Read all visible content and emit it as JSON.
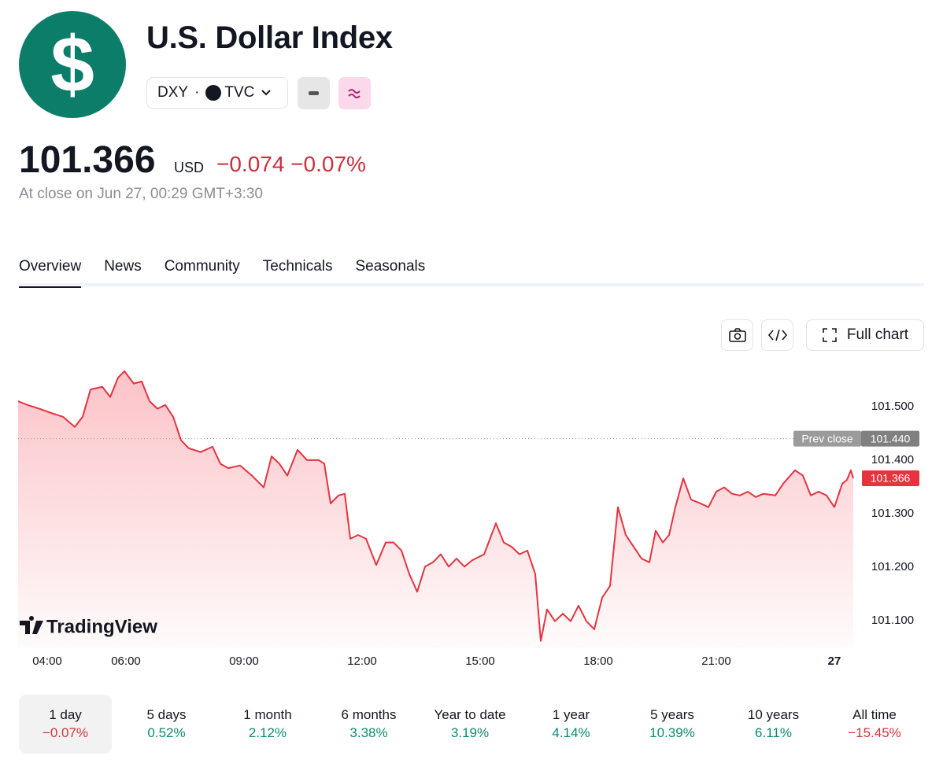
{
  "header": {
    "logo_symbol": "$",
    "title": "U.S. Dollar Index",
    "symbol": "DXY",
    "separator": "·",
    "exchange": "TVC"
  },
  "quote": {
    "price": "101.366",
    "currency": "USD",
    "change": "−0.074",
    "change_percent": "−0.07%",
    "status": "At close on Jun 27, 00:29 GMT+3:30"
  },
  "tabs": [
    "Overview",
    "News",
    "Community",
    "Technicals",
    "Seasonals"
  ],
  "active_tab": 0,
  "toolbar": {
    "full_chart": "Full chart"
  },
  "chart_data": {
    "type": "line",
    "x": [
      3.26,
      3.5,
      3.8,
      4.1,
      4.4,
      4.7,
      4.9,
      5.1,
      5.4,
      5.6,
      5.8,
      5.96,
      6.2,
      6.4,
      6.6,
      6.8,
      7.0,
      7.2,
      7.4,
      7.6,
      7.9,
      8.2,
      8.4,
      8.6,
      8.9,
      9.2,
      9.5,
      9.7,
      9.9,
      10.1,
      10.36,
      10.6,
      10.9,
      11.04,
      11.2,
      11.4,
      11.56,
      11.7,
      11.9,
      12.1,
      12.36,
      12.6,
      12.8,
      13.0,
      13.2,
      13.4,
      13.6,
      13.8,
      14.0,
      14.2,
      14.4,
      14.6,
      14.8,
      15.1,
      15.4,
      15.6,
      15.8,
      16.0,
      16.2,
      16.4,
      16.54,
      16.7,
      16.9,
      17.1,
      17.3,
      17.5,
      17.7,
      17.9,
      18.1,
      18.3,
      18.5,
      18.7,
      18.9,
      19.1,
      19.3,
      19.46,
      19.64,
      19.8,
      19.96,
      20.16,
      20.36,
      20.6,
      20.8,
      21.0,
      21.2,
      21.4,
      21.6,
      21.8,
      22.0,
      22.2,
      22.5,
      22.7,
      23.0,
      23.2,
      23.4,
      23.6,
      23.8,
      24.0,
      24.2,
      24.32,
      24.42,
      24.48
    ],
    "values": [
      101.51,
      101.503,
      101.496,
      101.488,
      101.481,
      101.462,
      101.481,
      101.532,
      101.537,
      101.518,
      101.554,
      101.566,
      101.543,
      101.547,
      101.51,
      101.496,
      101.503,
      101.481,
      101.437,
      101.422,
      101.415,
      101.425,
      101.393,
      101.385,
      101.39,
      101.371,
      101.349,
      101.407,
      101.393,
      101.371,
      101.419,
      101.4,
      101.4,
      101.393,
      101.319,
      101.334,
      101.337,
      101.253,
      101.26,
      101.253,
      101.204,
      101.246,
      101.246,
      101.231,
      101.187,
      101.154,
      101.201,
      101.209,
      101.224,
      101.201,
      101.216,
      101.201,
      101.213,
      101.224,
      101.282,
      101.246,
      101.238,
      101.224,
      101.231,
      101.187,
      101.062,
      101.121,
      101.099,
      101.113,
      101.099,
      101.128,
      101.099,
      101.084,
      101.143,
      101.165,
      101.312,
      101.26,
      101.238,
      101.216,
      101.209,
      101.268,
      101.246,
      101.26,
      101.312,
      101.366,
      101.326,
      101.319,
      101.312,
      101.341,
      101.349,
      101.337,
      101.334,
      101.341,
      101.331,
      101.337,
      101.334,
      101.356,
      101.381,
      101.371,
      101.334,
      101.341,
      101.334,
      101.312,
      101.356,
      101.363,
      101.381,
      101.366
    ],
    "color": "#e5333f",
    "area": true,
    "xlim": [
      3.26,
      24.48
    ],
    "xticks": [
      {
        "value": 4,
        "label": "04:00"
      },
      {
        "value": 6,
        "label": "06:00"
      },
      {
        "value": 9,
        "label": "09:00"
      },
      {
        "value": 12,
        "label": "12:00"
      },
      {
        "value": 15,
        "label": "15:00"
      },
      {
        "value": 18,
        "label": "18:00"
      },
      {
        "value": 21,
        "label": "21:00"
      },
      {
        "value": 24,
        "label": "27"
      }
    ],
    "ylim": [
      101.05,
      101.585
    ],
    "yticks": [
      {
        "value": 101.5,
        "label": "101.500"
      },
      {
        "value": 101.4,
        "label": "101.400"
      },
      {
        "value": 101.3,
        "label": "101.300"
      },
      {
        "value": 101.2,
        "label": "101.200"
      },
      {
        "value": 101.1,
        "label": "101.100"
      }
    ],
    "grid": false,
    "prev_close": {
      "name": "Prev close",
      "value": 101.44,
      "label": "101.440"
    },
    "last_price_label": "101.366",
    "watermark": "TradingView"
  },
  "periods": [
    {
      "label": "1 day",
      "change": "−0.07%",
      "color": "#d1343f"
    },
    {
      "label": "5 days",
      "change": "0.52%",
      "color": "#0c8a72"
    },
    {
      "label": "1 month",
      "change": "2.12%",
      "color": "#0c8a72"
    },
    {
      "label": "6 months",
      "change": "3.38%",
      "color": "#0c8a72"
    },
    {
      "label": "Year to date",
      "change": "3.19%",
      "color": "#0c8a72"
    },
    {
      "label": "1 year",
      "change": "4.14%",
      "color": "#0c8a72"
    },
    {
      "label": "5 years",
      "change": "10.39%",
      "color": "#0c8a72"
    },
    {
      "label": "10 years",
      "change": "6.11%",
      "color": "#0c8a72"
    },
    {
      "label": "All time",
      "change": "−15.45%",
      "color": "#d1343f"
    }
  ],
  "active_period": 0
}
